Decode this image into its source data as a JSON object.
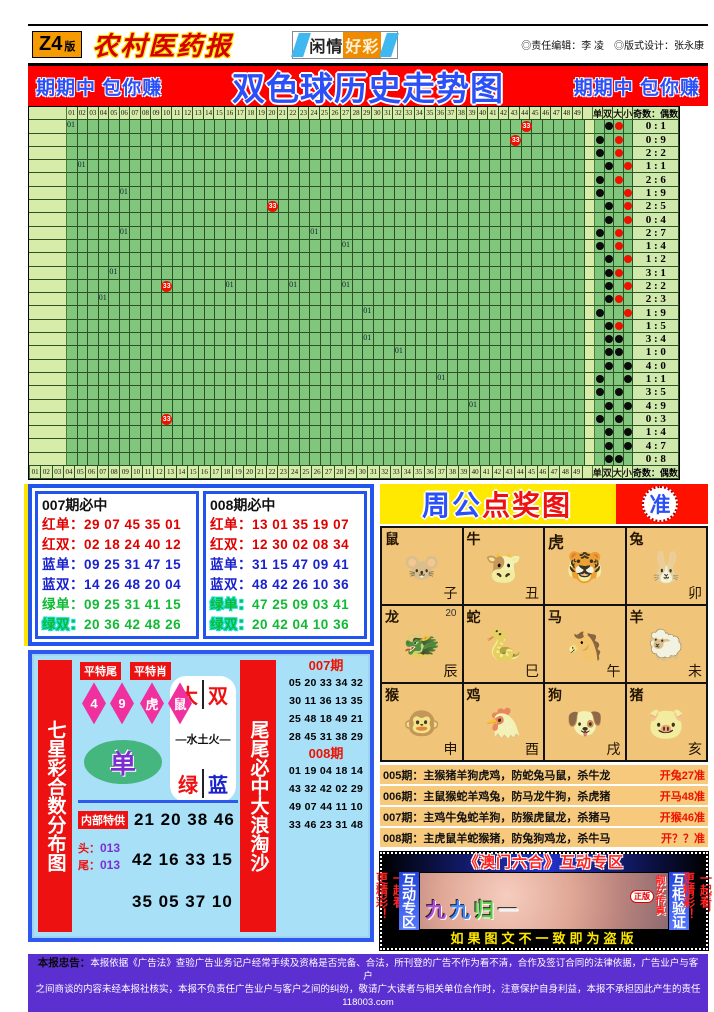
{
  "masthead": {
    "edition_code": "Z4",
    "edition_suffix": "版",
    "paper_name": "农村医药报",
    "ribbon_left": "闲情",
    "ribbon_right": "好彩",
    "editors": "◎责任编辑：李 凌　◎版式设计：张永康"
  },
  "banner": {
    "slogan_left": "期期中 包你赚",
    "title": "双色球历史走势图",
    "slogan_right": "期期中 包你赚"
  },
  "chart_data": {
    "type": "table",
    "title": "双色球历史走势图",
    "columns": [
      "01",
      "02",
      "03",
      "04",
      "05",
      "06",
      "07",
      "08",
      "09",
      "10",
      "11",
      "12",
      "13",
      "14",
      "15",
      "16",
      "17",
      "18",
      "19",
      "20",
      "21",
      "22",
      "23",
      "24",
      "25",
      "26",
      "27",
      "28",
      "29",
      "30",
      "31",
      "32",
      "33",
      "34",
      "35",
      "36",
      "37",
      "38",
      "39",
      "40",
      "41",
      "42",
      "43",
      "44",
      "45",
      "46",
      "47",
      "48",
      "49"
    ],
    "right_headers": [
      "单",
      "双",
      "大",
      "小"
    ],
    "ratio_header": "奇数：偶数",
    "rows": [
      {
        "ratio": "0 : 1",
        "parity": "双",
        "size": "大",
        "size_color": "red",
        "markers": [
          {
            "col": 1,
            "text": "01"
          },
          {
            "col": 44,
            "text": "33",
            "red": true
          }
        ]
      },
      {
        "ratio": "0 : 9",
        "parity": "单",
        "size": "大",
        "size_color": "red",
        "markers": [
          {
            "col": 43,
            "text": "33",
            "red": true
          }
        ]
      },
      {
        "ratio": "2 : 2",
        "parity": "单",
        "size": "大",
        "size_color": "red",
        "markers": []
      },
      {
        "ratio": "1 : 1",
        "parity": "双",
        "size": "小",
        "size_color": "red",
        "markers": [
          {
            "col": 2,
            "text": "01"
          }
        ]
      },
      {
        "ratio": "2 : 6",
        "parity": "单",
        "size": "大",
        "size_color": "red",
        "markers": []
      },
      {
        "ratio": "1 : 9",
        "parity": "单",
        "size": "小",
        "size_color": "red",
        "markers": [
          {
            "col": 6,
            "text": "01"
          }
        ]
      },
      {
        "ratio": "2 : 5",
        "parity": "双",
        "size": "小",
        "size_color": "red",
        "markers": [
          {
            "col": 20,
            "text": "33",
            "red": true
          }
        ]
      },
      {
        "ratio": "0 : 4",
        "parity": "双",
        "size": "小",
        "size_color": "red",
        "markers": []
      },
      {
        "ratio": "2 : 7",
        "parity": "单",
        "size": "大",
        "size_color": "red",
        "markers": [
          {
            "col": 6,
            "text": "01"
          },
          {
            "col": 24,
            "text": "01"
          }
        ]
      },
      {
        "ratio": "1 : 4",
        "parity": "单",
        "size": "大",
        "size_color": "red",
        "markers": [
          {
            "col": 27,
            "text": "01"
          }
        ]
      },
      {
        "ratio": "1 : 2",
        "parity": "双",
        "size": "小",
        "size_color": "red",
        "markers": []
      },
      {
        "ratio": "3 : 1",
        "parity": "双",
        "size": "大",
        "size_color": "red",
        "markers": [
          {
            "col": 5,
            "text": "01"
          }
        ]
      },
      {
        "ratio": "2 : 2",
        "parity": "双",
        "size": "小",
        "size_color": "red",
        "markers": [
          {
            "col": 10,
            "text": "33",
            "red": true
          },
          {
            "col": 16,
            "text": "01"
          },
          {
            "col": 22,
            "text": "01"
          },
          {
            "col": 27,
            "text": "01"
          }
        ]
      },
      {
        "ratio": "2 : 3",
        "parity": "双",
        "size": "大",
        "size_color": "red",
        "markers": [
          {
            "col": 4,
            "text": "01"
          }
        ]
      },
      {
        "ratio": "1 : 9",
        "parity": "单",
        "size": "小",
        "size_color": "red",
        "markers": [
          {
            "col": 29,
            "text": "01"
          }
        ]
      },
      {
        "ratio": "1 : 5",
        "parity": "双",
        "size": "大",
        "size_color": "red",
        "markers": []
      },
      {
        "ratio": "3 : 4",
        "parity": "双",
        "size": "大",
        "size_color": "black",
        "markers": [
          {
            "col": 29,
            "text": "01"
          }
        ]
      },
      {
        "ratio": "1 : 0",
        "parity": "双",
        "size": "大",
        "size_color": "black",
        "markers": [
          {
            "col": 32,
            "text": "01"
          }
        ]
      },
      {
        "ratio": "4 : 0",
        "parity": "双",
        "size": "小",
        "size_color": "black",
        "markers": []
      },
      {
        "ratio": "1 : 1",
        "parity": "单",
        "size": "小",
        "size_color": "black",
        "markers": [
          {
            "col": 36,
            "text": "01"
          }
        ]
      },
      {
        "ratio": "3 : 5",
        "parity": "单",
        "size": "大",
        "size_color": "black",
        "markers": []
      },
      {
        "ratio": "4 : 9",
        "parity": "双",
        "size": "小",
        "size_color": "black",
        "markers": [
          {
            "col": 39,
            "text": "01"
          }
        ]
      },
      {
        "ratio": "0 : 3",
        "parity": "单",
        "size": "大",
        "size_color": "black",
        "markers": [
          {
            "col": 10,
            "text": "33",
            "red": true
          }
        ]
      },
      {
        "ratio": "1 : 4",
        "parity": "双",
        "size": "小",
        "size_color": "black",
        "markers": []
      },
      {
        "ratio": "4 : 7",
        "parity": "双",
        "size": "小",
        "size_color": "black",
        "markers": []
      },
      {
        "ratio": "0 : 8",
        "parity": "双",
        "size": "大",
        "size_color": "black",
        "markers": []
      }
    ]
  },
  "predict_boxes": [
    {
      "title": "007期必中",
      "rows": [
        {
          "label": "红单：",
          "nums": "29 07 45 35 01",
          "color": "red"
        },
        {
          "label": "红双：",
          "nums": "02 18 24 40 12",
          "color": "red"
        },
        {
          "label": "蓝单：",
          "nums": "09 25 31 47 15",
          "color": "blue"
        },
        {
          "label": "蓝双：",
          "nums": "14 26 48 20 04",
          "color": "blue"
        },
        {
          "label": "绿单：",
          "nums": "09 25 31 41 15",
          "color": "green"
        },
        {
          "label": "绿双：",
          "nums": "20 36 42 48 26",
          "color": "green",
          "cyan": true
        }
      ]
    },
    {
      "title": "008期必中",
      "rows": [
        {
          "label": "红单：",
          "nums": "13 01 35 19 07",
          "color": "red"
        },
        {
          "label": "红双：",
          "nums": "12 30 02 08 34",
          "color": "red"
        },
        {
          "label": "蓝单：",
          "nums": "31 15 47 09 41",
          "color": "blue"
        },
        {
          "label": "蓝双：",
          "nums": "48 42 26 10 36",
          "color": "blue"
        },
        {
          "label": "绿单：",
          "nums": "47 25 09 03 41",
          "color": "green",
          "cyan": true
        },
        {
          "label": "绿双：",
          "nums": "20 42 04 10 36",
          "color": "green",
          "cyan": true
        }
      ]
    }
  ],
  "zhougong": {
    "title_chars": [
      {
        "t": "周",
        "c": "blue"
      },
      {
        "t": "公",
        "c": "blue"
      },
      {
        "t": "点",
        "c": "red"
      },
      {
        "t": "奖",
        "c": "red"
      },
      {
        "t": "图",
        "c": "red"
      }
    ],
    "badge": "准",
    "cells": [
      {
        "name": "鼠",
        "branch": "子",
        "pic": "🐭"
      },
      {
        "name": "牛",
        "branch": "丑",
        "pic": "🐮"
      },
      {
        "name": "虎",
        "branch": "",
        "pic": "🐯"
      },
      {
        "name": "兔",
        "branch": "卯",
        "pic": "🐰"
      },
      {
        "name": "龙",
        "branch": "辰",
        "badge": "20",
        "pic": "🐲"
      },
      {
        "name": "蛇",
        "branch": "巳",
        "pic": "🐍"
      },
      {
        "name": "马",
        "branch": "午",
        "pic": "🐴"
      },
      {
        "name": "羊",
        "branch": "未",
        "pic": "🐑"
      },
      {
        "name": "猴",
        "branch": "申",
        "pic": "🐵"
      },
      {
        "name": "鸡",
        "branch": "酉",
        "pic": "🐔"
      },
      {
        "name": "狗",
        "branch": "戌",
        "pic": "🐶"
      },
      {
        "name": "猪",
        "branch": "亥",
        "pic": "🐷"
      }
    ],
    "predictions": [
      {
        "label": "005期：",
        "body": "主猴猪羊狗虎鸡，防蛇兔马鼠，杀牛龙",
        "result": "开兔27准"
      },
      {
        "label": "006期：",
        "body": "主鼠猴蛇羊鸡兔，防马龙牛狗，杀虎猪",
        "result": "开马48准"
      },
      {
        "label": "007期：",
        "body": "主鸡牛兔蛇羊狗，防猴虎鼠龙，杀猪马",
        "result": "开猴46准"
      },
      {
        "label": "008期：",
        "body": "主虎鼠羊蛇猴猪，防兔狗鸡龙，杀牛马",
        "result": "开？？准"
      }
    ]
  },
  "ad": {
    "title": "《澳门六合》互动专区",
    "left_outer": "一起看，更精彩！",
    "left_inner": "互动专区",
    "right_inner": "互相验证",
    "right_outer": "一起看，更精彩！",
    "overlay_chars": [
      {
        "t": "九",
        "c": "#b44bd8"
      },
      {
        "t": "九",
        "c": "#4488ff"
      },
      {
        "t": "归",
        "c": "#55cc44"
      },
      {
        "t": "一",
        "c": "#eeeeee"
      }
    ],
    "photo_side": "靓女传真",
    "badge": "正版",
    "bottom": "如果图文不一致即为盗版"
  },
  "sevenstar": {
    "vertical_title": "七星彩合数分布图",
    "tags": [
      "平特尾",
      "平特肖"
    ],
    "diamonds": [
      "4",
      "9",
      "虎",
      "鼠"
    ],
    "pair_top": [
      "大",
      "双"
    ],
    "elements": "—水土火—",
    "pair_bottom": [
      "绿",
      "蓝"
    ],
    "oval": "单",
    "internal_label": "内部特供",
    "internal_numbers": "21 20 38 46",
    "head_label": "头：",
    "head_value": "013",
    "tail_label": "尾：",
    "tail_value": "013",
    "numbers_2": "42 16 33 15",
    "numbers_3": "35 05 37 10",
    "strip2": "尾尾必中大浪淘沙",
    "periods": [
      {
        "label": "007期",
        "rows": [
          "05 20 33 34 32",
          "30 11 36 13 35",
          "25 48 18 49 21",
          "28 45 31 38 29"
        ]
      },
      {
        "label": "008期",
        "rows": [
          "01 19 04 18 14",
          "43 32 42 02 29",
          "49 07 44 11 10",
          "33 46 23 31 48"
        ]
      }
    ]
  },
  "disclaimer": {
    "warn_label": "本报忠告：",
    "line1": "本报依据《广告法》查验广告业务记户经常手续及资格是否完备、合法，所刊登的广告不作为看不清，合作及签订合同的法律依据，广告业户与客户",
    "line2": "之间商谈的内容未经本报社核实，本报不负责任广告业户与客户之间的纠纷，敬请广大读者与相关单位合作时，注意保护自身利益，本报不承担因此产生的责任118003.com"
  }
}
